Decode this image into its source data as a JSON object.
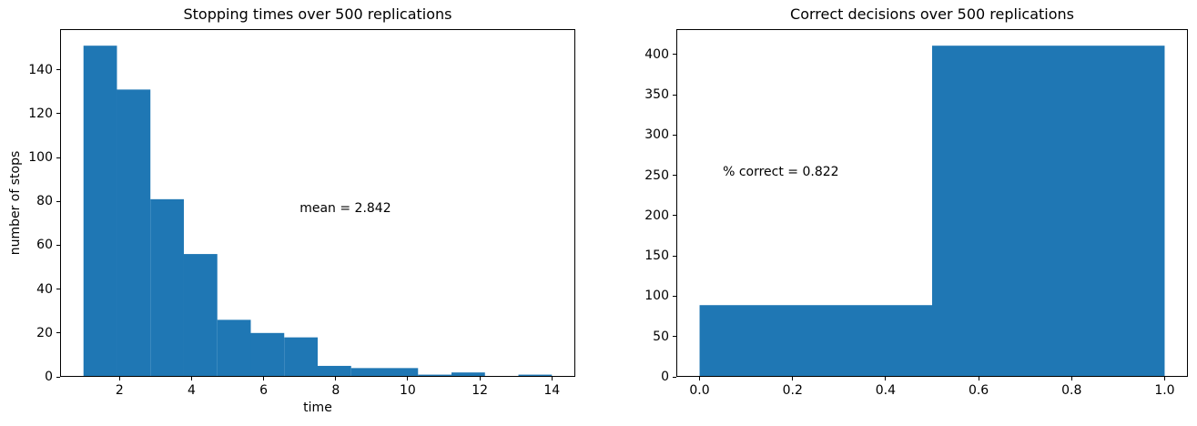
{
  "figure": {
    "background": "#ffffff",
    "bar_color": "#1f77b4",
    "spine_color": "#000000",
    "text_color": "#000000"
  },
  "chart_data": [
    {
      "type": "bar",
      "subtype": "histogram",
      "title": "Stopping times over 500 replications",
      "xlabel": "time",
      "ylabel": "number of stops",
      "total_replications": 500,
      "bin_edges": [
        1.0,
        1.9286,
        2.8571,
        3.7857,
        4.7143,
        5.6429,
        6.5714,
        7.5,
        8.4286,
        9.3571,
        10.2857,
        11.2143,
        12.1429,
        13.0714,
        14.0
      ],
      "counts": [
        151,
        131,
        81,
        56,
        26,
        20,
        18,
        5,
        4,
        4,
        1,
        2,
        0,
        1
      ],
      "xlim": [
        0.35,
        14.65
      ],
      "ylim": [
        0,
        158.55
      ],
      "xticks": {
        "values": [
          2,
          4,
          6,
          8,
          10,
          12,
          14
        ],
        "labels": [
          "2",
          "4",
          "6",
          "8",
          "10",
          "12",
          "14"
        ]
      },
      "yticks": {
        "values": [
          0,
          20,
          40,
          60,
          80,
          100,
          120,
          140
        ],
        "labels": [
          "0",
          "20",
          "40",
          "60",
          "80",
          "100",
          "120",
          "140"
        ]
      },
      "grid": false,
      "legend": null,
      "annotation": {
        "text": "mean = 2.842",
        "x": 7.0,
        "y": 75
      }
    },
    {
      "type": "bar",
      "subtype": "histogram",
      "title": "Correct decisions over 500 replications",
      "xlabel": "",
      "ylabel": "",
      "total_replications": 500,
      "bin_edges": [
        0.0,
        0.5,
        1.0
      ],
      "counts": [
        89,
        411
      ],
      "xlim": [
        -0.05,
        1.05
      ],
      "ylim": [
        0,
        431.55
      ],
      "xticks": {
        "values": [
          0.0,
          0.2,
          0.4,
          0.6,
          0.8,
          1.0
        ],
        "labels": [
          "0.0",
          "0.2",
          "0.4",
          "0.6",
          "0.8",
          "1.0"
        ]
      },
      "yticks": {
        "values": [
          0,
          50,
          100,
          150,
          200,
          250,
          300,
          350,
          400
        ],
        "labels": [
          "0",
          "50",
          "100",
          "150",
          "200",
          "250",
          "300",
          "350",
          "400"
        ]
      },
      "grid": false,
      "legend": null,
      "annotation": {
        "text": "% correct = 0.822",
        "x": 0.05,
        "y": 250
      }
    }
  ]
}
